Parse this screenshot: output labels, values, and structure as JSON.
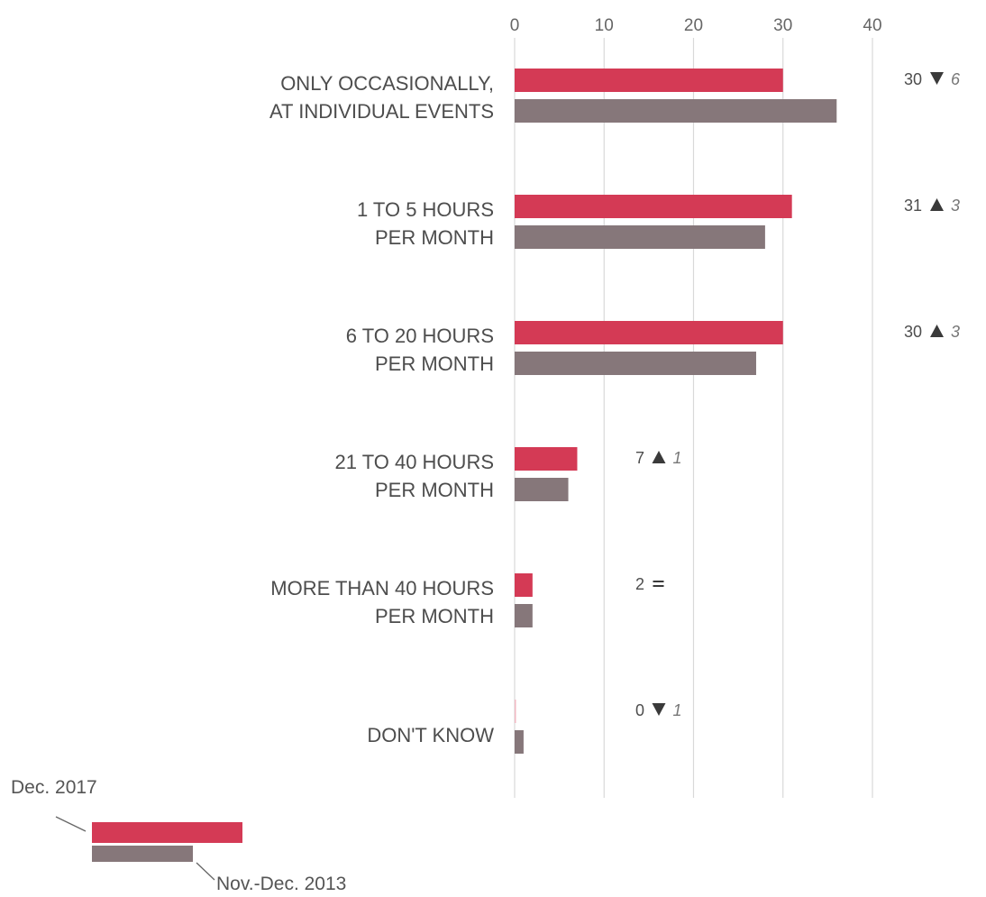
{
  "chart_data": {
    "type": "bar",
    "orientation": "horizontal",
    "categories": [
      [
        "ONLY OCCASIONALLY,",
        "AT INDIVIDUAL EVENTS"
      ],
      [
        "1 TO 5 HOURS",
        "PER MONTH"
      ],
      [
        "6 TO 20 HOURS",
        "PER MONTH"
      ],
      [
        "21 TO 40 HOURS",
        "PER MONTH"
      ],
      [
        "MORE THAN 40 HOURS",
        "PER MONTH"
      ],
      [
        "DON'T KNOW"
      ]
    ],
    "series": [
      {
        "name": "Dec. 2017",
        "color": "#d43a55",
        "values": [
          30,
          31,
          30,
          7,
          2,
          0
        ]
      },
      {
        "name": "Nov.-Dec. 2013",
        "color": "#86777a",
        "values": [
          36,
          28,
          27,
          6,
          2,
          1
        ]
      }
    ],
    "xlim": [
      0,
      40
    ],
    "xticks": [
      0,
      10,
      20,
      30,
      40
    ],
    "xaxis_position": "top",
    "grid": true,
    "legend_position": "bottom-left",
    "annotations": [
      {
        "value": "30",
        "symbol": "down",
        "change": "6"
      },
      {
        "value": "31",
        "symbol": "up",
        "change": "3"
      },
      {
        "value": "30",
        "symbol": "up",
        "change": "3"
      },
      {
        "value": "7",
        "symbol": "up",
        "change": "1"
      },
      {
        "value": "2",
        "symbol": "equal",
        "change": ""
      },
      {
        "value": "0",
        "symbol": "down",
        "change": "1"
      }
    ]
  }
}
